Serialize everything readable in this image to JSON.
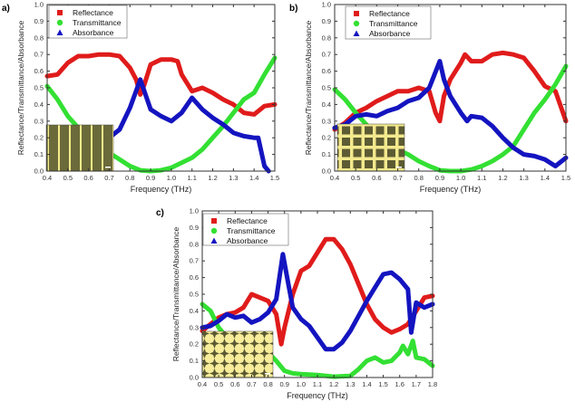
{
  "chart_data": [
    {
      "type": "line",
      "panel_label": "a)",
      "xlabel": "Frequency (THz)",
      "ylabel": "Reflectance/Transmittance/Absorbance",
      "xlim": [
        0.4,
        1.5
      ],
      "ylim": [
        0,
        1.0
      ],
      "x_ticks": [
        "0.4",
        "0.5",
        "0.6",
        "0.7",
        "0.8",
        "0.9",
        "1.0",
        "1.1",
        "1.2",
        "1.3",
        "1.4",
        "1.5"
      ],
      "y_ticks": [
        "0.0",
        "0.1",
        "0.2",
        "0.3",
        "0.4",
        "0.5",
        "0.6",
        "0.7",
        "0.8",
        "0.9",
        "1.0"
      ],
      "legend": "top-left",
      "inset": "stripe-pattern",
      "series": [
        {
          "name": "Reflectance",
          "color": "#e01b1b",
          "marker": "square",
          "x": [
            0.4,
            0.45,
            0.5,
            0.55,
            0.6,
            0.65,
            0.7,
            0.75,
            0.8,
            0.83,
            0.85,
            0.87,
            0.9,
            0.95,
            1.0,
            1.03,
            1.05,
            1.1,
            1.15,
            1.2,
            1.25,
            1.3,
            1.35,
            1.4,
            1.45,
            1.5
          ],
          "y": [
            0.57,
            0.58,
            0.65,
            0.69,
            0.69,
            0.7,
            0.7,
            0.69,
            0.62,
            0.55,
            0.46,
            0.52,
            0.64,
            0.67,
            0.67,
            0.66,
            0.58,
            0.48,
            0.5,
            0.47,
            0.43,
            0.4,
            0.35,
            0.34,
            0.39,
            0.4
          ]
        },
        {
          "name": "Transmittance",
          "color": "#33e033",
          "marker": "circle",
          "x": [
            0.4,
            0.45,
            0.5,
            0.55,
            0.6,
            0.65,
            0.7,
            0.75,
            0.8,
            0.85,
            0.9,
            0.95,
            1.0,
            1.05,
            1.1,
            1.15,
            1.2,
            1.25,
            1.3,
            1.35,
            1.4,
            1.45,
            1.5
          ],
          "y": [
            0.51,
            0.43,
            0.33,
            0.26,
            0.2,
            0.15,
            0.11,
            0.07,
            0.03,
            0.005,
            0.0,
            0.005,
            0.02,
            0.05,
            0.08,
            0.13,
            0.2,
            0.27,
            0.35,
            0.43,
            0.47,
            0.58,
            0.68
          ]
        },
        {
          "name": "Absorbance",
          "color": "#1414c0",
          "marker": "triangle",
          "x": [
            0.55,
            0.6,
            0.65,
            0.7,
            0.75,
            0.8,
            0.85,
            0.9,
            0.95,
            1.0,
            1.05,
            1.1,
            1.15,
            1.2,
            1.25,
            1.3,
            1.35,
            1.4,
            1.42,
            1.45,
            1.47
          ],
          "y": [
            0.08,
            0.12,
            0.15,
            0.2,
            0.25,
            0.38,
            0.55,
            0.37,
            0.33,
            0.3,
            0.35,
            0.44,
            0.37,
            0.32,
            0.28,
            0.23,
            0.21,
            0.2,
            0.2,
            0.03,
            0.0
          ]
        }
      ]
    },
    {
      "type": "line",
      "panel_label": "b)",
      "xlabel": "Frequency (THz)",
      "ylabel": "Reflectance/Transmittance/Absorbance",
      "xlim": [
        0.4,
        1.5
      ],
      "ylim": [
        0,
        1.0
      ],
      "x_ticks": [
        "0.4",
        "0.5",
        "0.6",
        "0.7",
        "0.8",
        "0.9",
        "1.0",
        "1.1",
        "1.2",
        "1.3",
        "1.4",
        "1.5"
      ],
      "y_ticks": [
        "0.0",
        "0.1",
        "0.2",
        "0.3",
        "0.4",
        "0.5",
        "0.6",
        "0.7",
        "0.8",
        "0.9",
        "1.0"
      ],
      "legend": "top-left",
      "inset": "grid-pattern",
      "series": [
        {
          "name": "Reflectance",
          "color": "#e01b1b",
          "marker": "square",
          "x": [
            0.4,
            0.45,
            0.5,
            0.55,
            0.6,
            0.65,
            0.7,
            0.75,
            0.8,
            0.85,
            0.88,
            0.9,
            0.92,
            0.95,
            1.0,
            1.02,
            1.05,
            1.1,
            1.15,
            1.2,
            1.25,
            1.3,
            1.35,
            1.4,
            1.45,
            1.5
          ],
          "y": [
            0.25,
            0.29,
            0.35,
            0.38,
            0.42,
            0.45,
            0.48,
            0.48,
            0.5,
            0.48,
            0.35,
            0.3,
            0.45,
            0.55,
            0.65,
            0.7,
            0.66,
            0.66,
            0.7,
            0.71,
            0.7,
            0.68,
            0.6,
            0.51,
            0.48,
            0.3
          ]
        },
        {
          "name": "Transmittance",
          "color": "#33e033",
          "marker": "circle",
          "x": [
            0.4,
            0.45,
            0.5,
            0.55,
            0.6,
            0.65,
            0.7,
            0.75,
            0.8,
            0.85,
            0.9,
            0.95,
            1.0,
            1.05,
            1.1,
            1.15,
            1.2,
            1.25,
            1.3,
            1.35,
            1.4,
            1.45,
            1.5
          ],
          "y": [
            0.49,
            0.43,
            0.35,
            0.28,
            0.22,
            0.17,
            0.13,
            0.1,
            0.06,
            0.03,
            0.005,
            0.0,
            0.0,
            0.01,
            0.03,
            0.06,
            0.1,
            0.15,
            0.25,
            0.35,
            0.43,
            0.52,
            0.63
          ]
        },
        {
          "name": "Absorbance",
          "color": "#1414c0",
          "marker": "triangle",
          "x": [
            0.4,
            0.45,
            0.5,
            0.55,
            0.6,
            0.65,
            0.7,
            0.75,
            0.8,
            0.85,
            0.9,
            0.92,
            0.95,
            1.0,
            1.03,
            1.05,
            1.1,
            1.15,
            1.2,
            1.25,
            1.3,
            1.35,
            1.4,
            1.45,
            1.5
          ],
          "y": [
            0.26,
            0.28,
            0.33,
            0.34,
            0.33,
            0.36,
            0.38,
            0.42,
            0.44,
            0.5,
            0.66,
            0.55,
            0.45,
            0.35,
            0.3,
            0.33,
            0.32,
            0.27,
            0.2,
            0.14,
            0.1,
            0.09,
            0.07,
            0.03,
            0.08
          ]
        }
      ]
    },
    {
      "type": "line",
      "panel_label": "c)",
      "xlabel": "Frequency (THz)",
      "ylabel": "Reflectance/Transmittance/Absorbance",
      "xlim": [
        0.4,
        1.8
      ],
      "ylim": [
        0,
        1.0
      ],
      "x_ticks": [
        "0.4",
        "0.5",
        "0.6",
        "0.7",
        "0.8",
        "0.9",
        "1.0",
        "1.1",
        "1.2",
        "1.3",
        "1.4",
        "1.5",
        "1.6",
        "1.7",
        "1.8"
      ],
      "y_ticks": [
        "0.0",
        "0.1",
        "0.2",
        "0.3",
        "0.4",
        "0.5",
        "0.6",
        "0.7",
        "0.8",
        "0.9",
        "1.0"
      ],
      "legend": "top-left",
      "inset": "star-pattern",
      "series": [
        {
          "name": "Reflectance",
          "color": "#e01b1b",
          "marker": "square",
          "x": [
            0.4,
            0.45,
            0.5,
            0.55,
            0.6,
            0.65,
            0.7,
            0.75,
            0.8,
            0.85,
            0.88,
            0.9,
            0.95,
            1.0,
            1.05,
            1.1,
            1.15,
            1.2,
            1.25,
            1.3,
            1.35,
            1.4,
            1.45,
            1.5,
            1.55,
            1.6,
            1.65,
            1.7,
            1.75,
            1.8
          ],
          "y": [
            0.28,
            0.32,
            0.36,
            0.38,
            0.39,
            0.42,
            0.5,
            0.48,
            0.46,
            0.38,
            0.2,
            0.3,
            0.5,
            0.64,
            0.67,
            0.75,
            0.83,
            0.83,
            0.77,
            0.68,
            0.56,
            0.44,
            0.35,
            0.3,
            0.27,
            0.29,
            0.32,
            0.4,
            0.48,
            0.49
          ]
        },
        {
          "name": "Transmittance",
          "color": "#33e033",
          "marker": "circle",
          "x": [
            0.4,
            0.45,
            0.5,
            0.55,
            0.6,
            0.7,
            0.8,
            0.85,
            0.9,
            0.95,
            1.0,
            1.1,
            1.2,
            1.3,
            1.35,
            1.4,
            1.45,
            1.5,
            1.55,
            1.6,
            1.62,
            1.65,
            1.68,
            1.7,
            1.75,
            1.8
          ],
          "y": [
            0.44,
            0.4,
            0.3,
            0.24,
            0.2,
            0.17,
            0.15,
            0.1,
            0.04,
            0.025,
            0.02,
            0.015,
            0.005,
            0.01,
            0.05,
            0.1,
            0.12,
            0.09,
            0.1,
            0.15,
            0.19,
            0.14,
            0.22,
            0.12,
            0.11,
            0.07
          ]
        },
        {
          "name": "Absorbance",
          "color": "#1414c0",
          "marker": "triangle",
          "x": [
            0.4,
            0.45,
            0.5,
            0.55,
            0.6,
            0.65,
            0.7,
            0.75,
            0.8,
            0.85,
            0.89,
            0.92,
            0.95,
            1.0,
            1.05,
            1.1,
            1.15,
            1.2,
            1.25,
            1.3,
            1.35,
            1.4,
            1.45,
            1.5,
            1.55,
            1.6,
            1.65,
            1.67,
            1.7,
            1.75,
            1.8
          ],
          "y": [
            0.3,
            0.31,
            0.34,
            0.38,
            0.36,
            0.37,
            0.33,
            0.35,
            0.39,
            0.47,
            0.74,
            0.58,
            0.42,
            0.35,
            0.31,
            0.24,
            0.17,
            0.17,
            0.21,
            0.28,
            0.37,
            0.46,
            0.54,
            0.62,
            0.63,
            0.59,
            0.53,
            0.27,
            0.45,
            0.42,
            0.44
          ]
        }
      ]
    }
  ]
}
